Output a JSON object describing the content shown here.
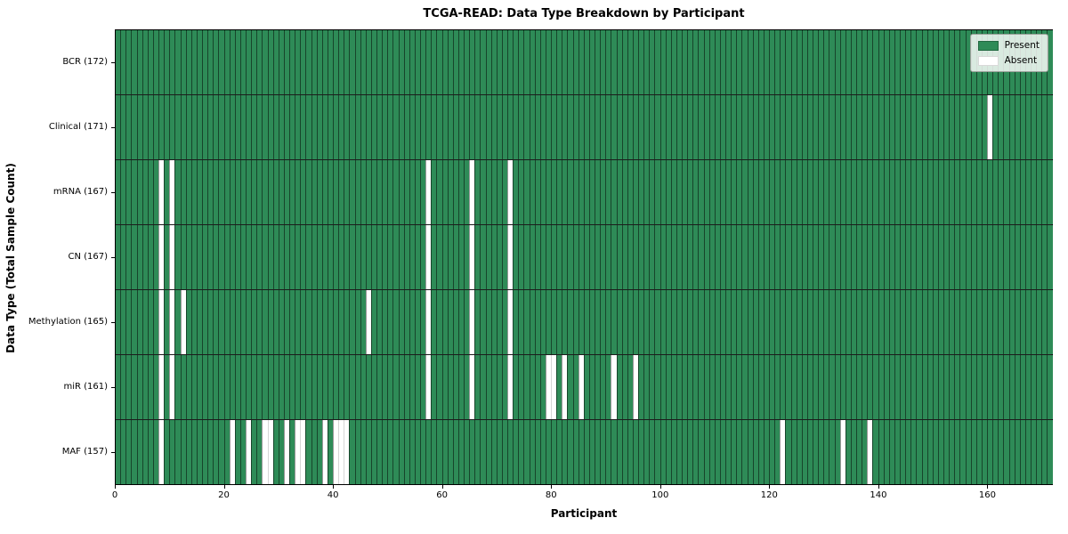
{
  "title": "TCGA-READ: Data Type Breakdown by Participant",
  "colors": {
    "present_green": "#2E8B57",
    "absent_white": "#FFFFFF"
  },
  "legend": {
    "present_label": "Present",
    "absent_label": "Absent"
  },
  "chart_data": {
    "type": "heatmap",
    "title": "TCGA-READ: Data Type Breakdown by Participant",
    "xlabel": "Participant",
    "ylabel": "Data Type (Total Sample Count)",
    "x_range": [
      0,
      172
    ],
    "n_participants": 172,
    "x_ticks": [
      0,
      20,
      40,
      60,
      80,
      100,
      120,
      140,
      160
    ],
    "grid": "cell-borders",
    "legend_position": "upper right",
    "legend_entries": [
      "Present",
      "Absent"
    ],
    "rows": [
      {
        "label": "BCR (172)",
        "data_type": "BCR",
        "total_sample_count": 172,
        "absent_participants": []
      },
      {
        "label": "Clinical (171)",
        "data_type": "Clinical",
        "total_sample_count": 171,
        "absent_participants": [
          160
        ]
      },
      {
        "label": "mRNA (167)",
        "data_type": "mRNA",
        "total_sample_count": 167,
        "absent_participants": [
          8,
          10,
          57,
          65,
          72
        ]
      },
      {
        "label": "CN (167)",
        "data_type": "CN",
        "total_sample_count": 167,
        "absent_participants": [
          8,
          10,
          57,
          65,
          72
        ]
      },
      {
        "label": "Methylation (165)",
        "data_type": "Methylation",
        "total_sample_count": 165,
        "absent_participants": [
          8,
          10,
          12,
          46,
          57,
          65,
          72
        ]
      },
      {
        "label": "miR (161)",
        "data_type": "miR",
        "total_sample_count": 161,
        "absent_participants": [
          8,
          10,
          57,
          65,
          72,
          79,
          80,
          82,
          85,
          91,
          95
        ]
      },
      {
        "label": "MAF (157)",
        "data_type": "MAF",
        "total_sample_count": 157,
        "absent_participants": [
          8,
          21,
          24,
          27,
          28,
          31,
          33,
          34,
          38,
          40,
          41,
          42,
          122,
          133,
          138
        ]
      }
    ]
  }
}
